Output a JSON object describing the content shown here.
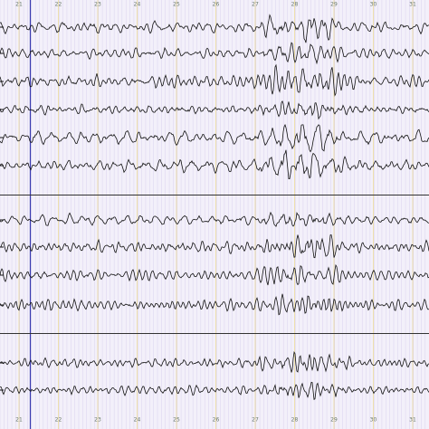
{
  "top_ruler": {
    "labels": [
      "21",
      "22",
      "23",
      "24",
      "25",
      "26",
      "27",
      "28",
      "29",
      "30",
      "31"
    ]
  },
  "bottom_ruler": {
    "labels": [
      "21",
      "22",
      "23",
      "24",
      "25",
      "26",
      "27",
      "28",
      "29",
      "30",
      "31"
    ]
  }
}
